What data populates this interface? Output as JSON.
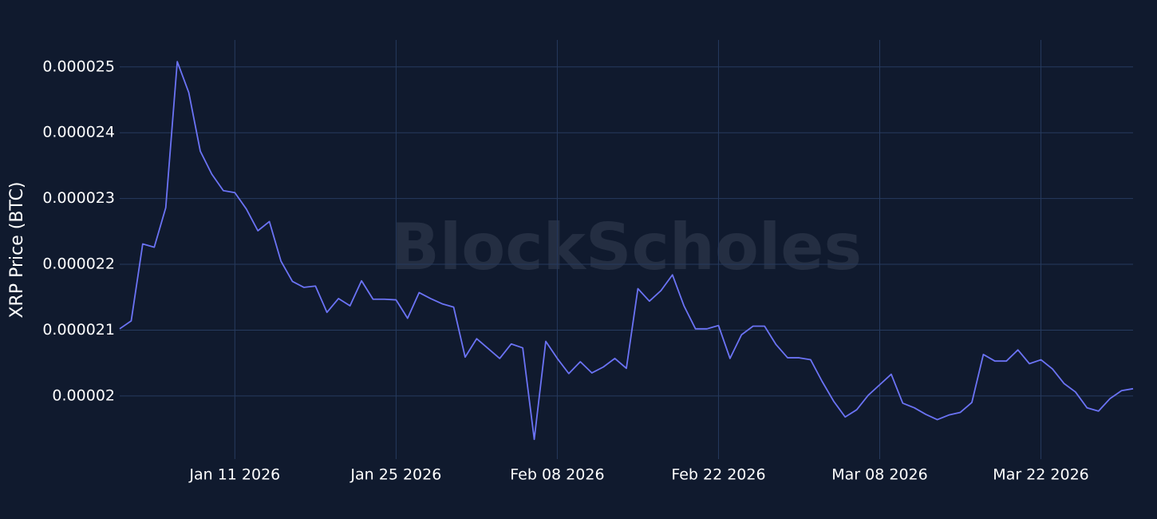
{
  "chart_data": {
    "type": "line",
    "y_label": "XRP Price (BTC)",
    "watermark": "BlockScholes",
    "color": "#6b73f5",
    "grid": true,
    "x": [
      "2026-01-01",
      "2026-01-02",
      "2026-01-03",
      "2026-01-04",
      "2026-01-05",
      "2026-01-06",
      "2026-01-07",
      "2026-01-08",
      "2026-01-09",
      "2026-01-10",
      "2026-01-11",
      "2026-01-12",
      "2026-01-13",
      "2026-01-14",
      "2026-01-15",
      "2026-01-16",
      "2026-01-17",
      "2026-01-18",
      "2026-01-19",
      "2026-01-20",
      "2026-01-21",
      "2026-01-22",
      "2026-01-23",
      "2026-01-24",
      "2026-01-25",
      "2026-01-26",
      "2026-01-27",
      "2026-01-28",
      "2026-01-29",
      "2026-01-30",
      "2026-01-31",
      "2026-02-01",
      "2026-02-02",
      "2026-02-03",
      "2026-02-04",
      "2026-02-05",
      "2026-02-06",
      "2026-02-07",
      "2026-02-08",
      "2026-02-09",
      "2026-02-10",
      "2026-02-11",
      "2026-02-12",
      "2026-02-13",
      "2026-02-14",
      "2026-02-15",
      "2026-02-16",
      "2026-02-17",
      "2026-02-18",
      "2026-02-19",
      "2026-02-20",
      "2026-02-21",
      "2026-02-22",
      "2026-02-23",
      "2026-02-24",
      "2026-02-25",
      "2026-02-26",
      "2026-02-27",
      "2026-02-28",
      "2026-03-01",
      "2026-03-02",
      "2026-03-03",
      "2026-03-04",
      "2026-03-05",
      "2026-03-06",
      "2026-03-07",
      "2026-03-08",
      "2026-03-09",
      "2026-03-10",
      "2026-03-11",
      "2026-03-12",
      "2026-03-13",
      "2026-03-14",
      "2026-03-15",
      "2026-03-16",
      "2026-03-17",
      "2026-03-18",
      "2026-03-19",
      "2026-03-20",
      "2026-03-21",
      "2026-03-22",
      "2026-03-23",
      "2026-03-24",
      "2026-03-25",
      "2026-03-26",
      "2026-03-27",
      "2026-03-28",
      "2026-03-29",
      "2026-03-30"
    ],
    "values": [
      2.102e-05,
      2.114e-05,
      2.231e-05,
      2.226e-05,
      2.286e-05,
      2.508e-05,
      2.461e-05,
      2.372e-05,
      2.337e-05,
      2.312e-05,
      2.309e-05,
      2.284e-05,
      2.251e-05,
      2.265e-05,
      2.205e-05,
      2.174e-05,
      2.165e-05,
      2.167e-05,
      2.127e-05,
      2.148e-05,
      2.137e-05,
      2.175e-05,
      2.147e-05,
      2.147e-05,
      2.146e-05,
      2.118e-05,
      2.157e-05,
      2.148e-05,
      2.14e-05,
      2.135e-05,
      2.059e-05,
      2.087e-05,
      2.072e-05,
      2.057e-05,
      2.079e-05,
      2.073e-05,
      1.934e-05,
      2.083e-05,
      2.057e-05,
      2.034e-05,
      2.052e-05,
      2.035e-05,
      2.044e-05,
      2.057e-05,
      2.042e-05,
      2.163e-05,
      2.144e-05,
      2.16e-05,
      2.184e-05,
      2.137e-05,
      2.102e-05,
      2.102e-05,
      2.107e-05,
      2.057e-05,
      2.093e-05,
      2.106e-05,
      2.106e-05,
      2.078e-05,
      2.058e-05,
      2.058e-05,
      2.055e-05,
      2.022e-05,
      1.992e-05,
      1.968e-05,
      1.979e-05,
      2.001e-05,
      2.017e-05,
      2.033e-05,
      1.989e-05,
      1.982e-05,
      1.972e-05,
      1.964e-05,
      1.971e-05,
      1.975e-05,
      1.99e-05,
      2.063e-05,
      2.053e-05,
      2.053e-05,
      2.07e-05,
      2.049e-05,
      2.055e-05,
      2.041e-05,
      2.019e-05,
      2.006e-05,
      1.982e-05,
      1.977e-05,
      1.996e-05,
      2.008e-05,
      2.011e-05
    ],
    "xlim": [
      "2026-01-01",
      "2026-03-30"
    ],
    "xticks": [
      {
        "value": "2026-01-11",
        "label": "Jan 11 2026"
      },
      {
        "value": "2026-01-25",
        "label": "Jan 25 2026"
      },
      {
        "value": "2026-02-08",
        "label": "Feb 08 2026"
      },
      {
        "value": "2026-02-22",
        "label": "Feb 22 2026"
      },
      {
        "value": "2026-03-08",
        "label": "Mar 08 2026"
      },
      {
        "value": "2026-03-22",
        "label": "Mar 22 2026"
      }
    ],
    "ylim": [
      1.904e-05,
      2.541e-05
    ],
    "yticks": [
      2e-05,
      2.1e-05,
      2.2e-05,
      2.3e-05,
      2.4e-05,
      2.5e-05
    ]
  }
}
